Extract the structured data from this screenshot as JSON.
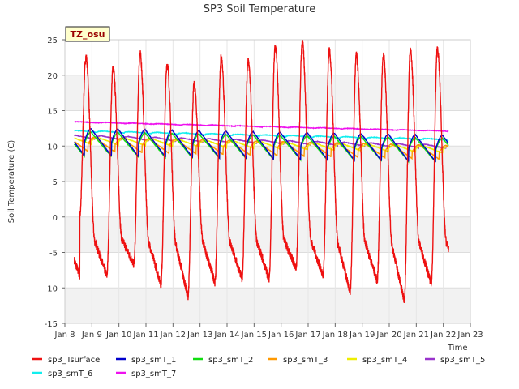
{
  "chart_data": {
    "type": "line",
    "title": "SP3 Soil Temperature",
    "xlabel": "Time",
    "ylabel": "Soil Temperature (C)",
    "ylim": [
      -15,
      25
    ],
    "yticks": [
      -15,
      -10,
      -5,
      0,
      5,
      10,
      15,
      20,
      25
    ],
    "xlim": [
      8,
      23
    ],
    "xticks": [
      {
        "v": 8,
        "label": "Jan 8"
      },
      {
        "v": 9,
        "label": "Jan 9"
      },
      {
        "v": 10,
        "label": "Jan 10"
      },
      {
        "v": 11,
        "label": "Jan 11"
      },
      {
        "v": 12,
        "label": "Jan 12"
      },
      {
        "v": 13,
        "label": "Jan 13"
      },
      {
        "v": 14,
        "label": "Jan 14"
      },
      {
        "v": 15,
        "label": "Jan 15"
      },
      {
        "v": 16,
        "label": "Jan 16"
      },
      {
        "v": 17,
        "label": "Jan 17"
      },
      {
        "v": 18,
        "label": "Jan 18"
      },
      {
        "v": 19,
        "label": "Jan 19"
      },
      {
        "v": 20,
        "label": "Jan 20"
      },
      {
        "v": 21,
        "label": "Jan 21"
      },
      {
        "v": 22,
        "label": "Jan 22"
      },
      {
        "v": 23,
        "label": "Jan 23"
      }
    ],
    "grid": true,
    "legend_position": "bottom",
    "annotation": "TZ_osu",
    "surface": {
      "name": "sp3_Tsurface",
      "color": "#ee1111",
      "start_x": 8.35,
      "end_x": 22.2,
      "start_value": 0.2,
      "days": [
        {
          "max": 22.6,
          "min": -8.3
        },
        {
          "max": 21.0,
          "min": -6.7
        },
        {
          "max": 23.0,
          "min": -9.5
        },
        {
          "max": 21.6,
          "min": -11.2
        },
        {
          "max": 18.6,
          "min": -9.2
        },
        {
          "max": 22.4,
          "min": -8.7
        },
        {
          "max": 22.0,
          "min": -8.7
        },
        {
          "max": 24.0,
          "min": -7.2
        },
        {
          "max": 24.6,
          "min": -8.3
        },
        {
          "max": 23.4,
          "min": -10.5
        },
        {
          "max": 22.8,
          "min": -9.0
        },
        {
          "max": 22.8,
          "min": -11.8
        },
        {
          "max": 23.4,
          "min": -9.4
        },
        {
          "max": 23.6,
          "min": -8.6
        }
      ]
    },
    "series": [
      {
        "name": "sp3_Tsurface",
        "color": "#ee1111"
      },
      {
        "name": "sp3_smT_1",
        "color": "#0000cc",
        "start": 10.6,
        "end": 9.6,
        "amp": 1.9,
        "peak_offset": 0.72
      },
      {
        "name": "sp3_smT_2",
        "color": "#11dd11",
        "start": 10.3,
        "end": 9.4,
        "amp": 1.7,
        "peak_offset": 0.72
      },
      {
        "name": "sp3_smT_3",
        "color": "#ff9900",
        "start": 10.3,
        "end": 9.1,
        "amp": 1.0,
        "peak_offset": 0.85
      },
      {
        "name": "sp3_smT_4",
        "color": "#eeee00",
        "start": 10.8,
        "end": 9.5,
        "amp": 0.5,
        "peak_offset": 0.98
      },
      {
        "name": "sp3_smT_5",
        "color": "#9933cc",
        "start": 11.3,
        "end": 9.9,
        "amp": 0.25,
        "peak_offset": 1.1
      },
      {
        "name": "sp3_smT_6",
        "color": "#11eeee",
        "start": 12.1,
        "end": 10.9,
        "amp": 0.1,
        "peak_offset": 1.2
      },
      {
        "name": "sp3_smT_7",
        "color": "#ee11ee",
        "start": 13.4,
        "end": 12.1,
        "amp": 0.05,
        "peak_offset": 1.3
      }
    ]
  }
}
